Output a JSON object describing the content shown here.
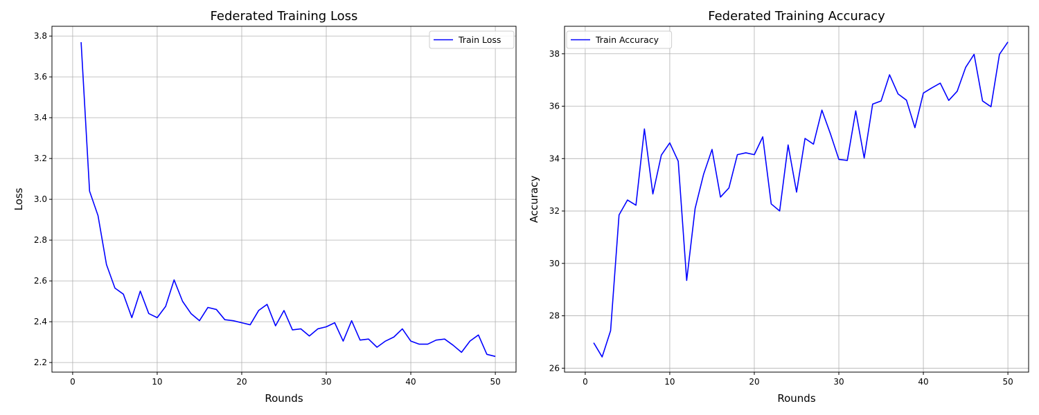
{
  "chart_data": [
    {
      "type": "line",
      "title": "Federated Training Loss",
      "xlabel": "Rounds",
      "ylabel": "Loss",
      "xlim": [
        -2.45,
        52.45
      ],
      "ylim": [
        2.153,
        3.848
      ],
      "xticks": [
        0,
        10,
        20,
        30,
        40,
        50
      ],
      "yticks": [
        2.2,
        2.4,
        2.6,
        2.8,
        3.0,
        3.2,
        3.4,
        3.6,
        3.8
      ],
      "grid": true,
      "legend": "top-right",
      "series": [
        {
          "name": "Train Loss",
          "color": "#0000ff",
          "x": [
            1,
            2,
            3,
            4,
            5,
            6,
            7,
            8,
            9,
            10,
            11,
            12,
            13,
            14,
            15,
            16,
            17,
            18,
            19,
            20,
            21,
            22,
            23,
            24,
            25,
            26,
            27,
            28,
            29,
            30,
            31,
            32,
            33,
            34,
            35,
            36,
            37,
            38,
            39,
            40,
            41,
            42,
            43,
            44,
            45,
            46,
            47,
            48,
            49,
            50
          ],
          "y": [
            3.77,
            3.04,
            2.92,
            2.68,
            2.565,
            2.535,
            2.42,
            2.55,
            2.44,
            2.42,
            2.475,
            2.605,
            2.5,
            2.44,
            2.405,
            2.47,
            2.46,
            2.41,
            2.405,
            2.395,
            2.385,
            2.455,
            2.485,
            2.38,
            2.455,
            2.36,
            2.365,
            2.33,
            2.365,
            2.375,
            2.395,
            2.305,
            2.405,
            2.31,
            2.315,
            2.275,
            2.305,
            2.325,
            2.365,
            2.305,
            2.29,
            2.29,
            2.31,
            2.315,
            2.285,
            2.25,
            2.305,
            2.335,
            2.24,
            2.23
          ]
        }
      ]
    },
    {
      "type": "line",
      "title": "Federated Training Accuracy",
      "xlabel": "Rounds",
      "ylabel": "Accuracy",
      "xlim": [
        -2.45,
        52.45
      ],
      "ylim": [
        25.85,
        39.05
      ],
      "xticks": [
        0,
        10,
        20,
        30,
        40,
        50
      ],
      "yticks": [
        26,
        28,
        30,
        32,
        34,
        36,
        38
      ],
      "grid": true,
      "legend": "top-left",
      "series": [
        {
          "name": "Train Accuracy",
          "color": "#0000ff",
          "x": [
            1,
            2,
            3,
            4,
            5,
            6,
            7,
            8,
            9,
            10,
            11,
            12,
            13,
            14,
            15,
            16,
            17,
            18,
            19,
            20,
            21,
            22,
            23,
            24,
            25,
            26,
            27,
            28,
            29,
            30,
            31,
            32,
            33,
            34,
            35,
            36,
            37,
            38,
            39,
            40,
            41,
            42,
            43,
            44,
            45,
            46,
            47,
            48,
            49,
            50
          ],
          "y": [
            26.97,
            26.43,
            27.43,
            31.85,
            32.42,
            32.22,
            35.13,
            32.65,
            34.13,
            34.6,
            33.9,
            29.35,
            32.1,
            33.4,
            34.35,
            32.53,
            32.88,
            34.15,
            34.22,
            34.15,
            34.83,
            32.27,
            32.0,
            34.52,
            32.72,
            34.77,
            34.55,
            35.85,
            34.95,
            33.97,
            33.93,
            35.82,
            34.02,
            36.08,
            36.2,
            37.2,
            36.47,
            36.23,
            35.18,
            36.5,
            36.7,
            36.88,
            36.22,
            36.57,
            37.48,
            37.98,
            36.2,
            35.98,
            37.98,
            38.45
          ]
        }
      ]
    }
  ]
}
